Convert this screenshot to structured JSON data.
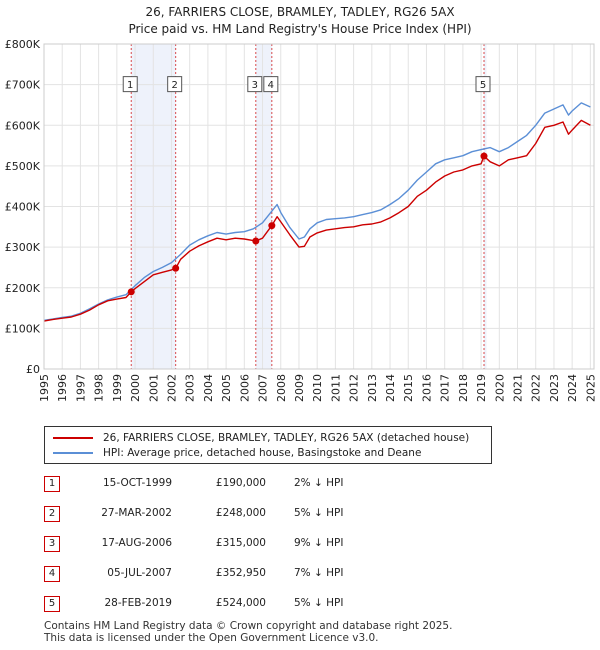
{
  "chart_data": {
    "type": "line",
    "title": "26, FARRIERS CLOSE, BRAMLEY, TADLEY, RG26 5AX",
    "subtitle": "Price paid vs. HM Land Registry's House Price Index (HPI)",
    "xlim": [
      1995,
      2025.2
    ],
    "ylim": [
      0,
      800000
    ],
    "y_ticks": [
      0,
      100000,
      200000,
      300000,
      400000,
      500000,
      600000,
      700000,
      800000
    ],
    "y_tick_labels": [
      "£0",
      "£100K",
      "£200K",
      "£300K",
      "£400K",
      "£500K",
      "£600K",
      "£700K",
      "£800K"
    ],
    "x_ticks": [
      1995,
      1996,
      1997,
      1998,
      1999,
      2000,
      2001,
      2002,
      2003,
      2004,
      2005,
      2006,
      2007,
      2008,
      2009,
      2010,
      2011,
      2012,
      2013,
      2014,
      2015,
      2016,
      2017,
      2018,
      2019,
      2020,
      2021,
      2022,
      2023,
      2024,
      2025
    ],
    "x_tick_labels": [
      "1995",
      "1996",
      "1997",
      "1998",
      "1999",
      "2000",
      "2001",
      "2002",
      "2003",
      "2004",
      "2005",
      "2006",
      "2007",
      "2008",
      "2009",
      "2010",
      "2011",
      "2012",
      "2013",
      "2014",
      "2015",
      "2016",
      "2017",
      "2018",
      "2019",
      "2020",
      "2021",
      "2022",
      "2023",
      "2024",
      "2025"
    ],
    "grid": true,
    "legend_position": "below chart",
    "colors": {
      "property": "#cc0000",
      "hpi": "#5b8fd6",
      "shade": "#eef2fb",
      "vline": "#cc0000"
    },
    "series": [
      {
        "name": "26, FARRIERS CLOSE, BRAMLEY, TADLEY, RG26 5AX (detached house)",
        "x": [
          1995.0,
          1995.5,
          1996.0,
          1996.5,
          1997.0,
          1997.5,
          1998.0,
          1998.5,
          1999.0,
          1999.5,
          1999.79,
          2000.0,
          2000.5,
          2001.0,
          2001.5,
          2002.0,
          2002.23,
          2002.5,
          2003.0,
          2003.5,
          2004.0,
          2004.5,
          2005.0,
          2005.5,
          2006.0,
          2006.5,
          2006.63,
          2007.0,
          2007.51,
          2007.8,
          2008.0,
          2008.5,
          2009.0,
          2009.3,
          2009.6,
          2010.0,
          2010.5,
          2011.0,
          2011.5,
          2012.0,
          2012.5,
          2013.0,
          2013.5,
          2014.0,
          2014.5,
          2015.0,
          2015.5,
          2016.0,
          2016.5,
          2017.0,
          2017.5,
          2018.0,
          2018.5,
          2019.0,
          2019.16,
          2019.5,
          2020.0,
          2020.5,
          2021.0,
          2021.5,
          2022.0,
          2022.5,
          2023.0,
          2023.5,
          2023.8,
          2024.0,
          2024.5,
          2025.0
        ],
        "values": [
          118000,
          122000,
          125000,
          128000,
          135000,
          145000,
          158000,
          168000,
          172000,
          176000,
          190000,
          198000,
          215000,
          232000,
          238000,
          244000,
          248000,
          270000,
          290000,
          303000,
          313000,
          322000,
          318000,
          322000,
          320000,
          316000,
          315000,
          322000,
          352950,
          375000,
          362000,
          330000,
          300000,
          302000,
          325000,
          335000,
          342000,
          345000,
          348000,
          350000,
          355000,
          357000,
          362000,
          372000,
          385000,
          400000,
          425000,
          440000,
          460000,
          475000,
          485000,
          490000,
          500000,
          505000,
          524000,
          510000,
          500000,
          515000,
          520000,
          525000,
          555000,
          595000,
          600000,
          608000,
          578000,
          588000,
          612000,
          600000
        ]
      },
      {
        "name": "HPI: Average price, detached house, Basingstoke and Deane",
        "x": [
          1995.0,
          1995.5,
          1996.0,
          1996.5,
          1997.0,
          1997.5,
          1998.0,
          1998.5,
          1999.0,
          1999.5,
          2000.0,
          2000.5,
          2001.0,
          2001.5,
          2002.0,
          2002.5,
          2003.0,
          2003.5,
          2004.0,
          2004.5,
          2005.0,
          2005.5,
          2006.0,
          2006.5,
          2007.0,
          2007.5,
          2007.8,
          2008.0,
          2008.5,
          2009.0,
          2009.3,
          2009.6,
          2010.0,
          2010.5,
          2011.0,
          2011.5,
          2012.0,
          2012.5,
          2013.0,
          2013.5,
          2014.0,
          2014.5,
          2015.0,
          2015.5,
          2016.0,
          2016.5,
          2017.0,
          2017.5,
          2018.0,
          2018.5,
          2019.0,
          2019.5,
          2020.0,
          2020.5,
          2021.0,
          2021.5,
          2022.0,
          2022.5,
          2023.0,
          2023.5,
          2023.8,
          2024.0,
          2024.5,
          2025.0
        ],
        "values": [
          120000,
          123000,
          127000,
          130000,
          137000,
          148000,
          160000,
          170000,
          177000,
          183000,
          205000,
          225000,
          240000,
          250000,
          262000,
          282000,
          305000,
          318000,
          328000,
          336000,
          332000,
          336000,
          338000,
          345000,
          360000,
          388000,
          405000,
          385000,
          348000,
          320000,
          325000,
          345000,
          360000,
          368000,
          370000,
          372000,
          375000,
          380000,
          385000,
          392000,
          405000,
          420000,
          440000,
          465000,
          485000,
          505000,
          515000,
          520000,
          525000,
          535000,
          540000,
          545000,
          535000,
          545000,
          560000,
          575000,
          600000,
          630000,
          640000,
          650000,
          625000,
          635000,
          655000,
          645000
        ]
      }
    ],
    "highlight_spans": [
      [
        1999.79,
        2002.23
      ],
      [
        2006.63,
        2007.51
      ],
      [
        2019.16,
        2019.3
      ]
    ],
    "sales": [
      {
        "label": "1",
        "x": 1999.79,
        "value": 190000
      },
      {
        "label": "2",
        "x": 2002.23,
        "value": 248000
      },
      {
        "label": "3",
        "x": 2006.63,
        "value": 315000
      },
      {
        "label": "4",
        "x": 2007.51,
        "value": 352950
      },
      {
        "label": "5",
        "x": 2019.16,
        "value": 524000
      }
    ]
  },
  "legend": {
    "property_label": "26, FARRIERS CLOSE, BRAMLEY, TADLEY, RG26 5AX (detached house)",
    "hpi_label": "HPI: Average price, detached house, Basingstoke and Deane"
  },
  "sales_table": [
    {
      "num": "1",
      "date": "15-OCT-1999",
      "price": "£190,000",
      "pct": "2% ↓ HPI"
    },
    {
      "num": "2",
      "date": "27-MAR-2002",
      "price": "£248,000",
      "pct": "5% ↓ HPI"
    },
    {
      "num": "3",
      "date": "17-AUG-2006",
      "price": "£315,000",
      "pct": "9% ↓ HPI"
    },
    {
      "num": "4",
      "date": "05-JUL-2007",
      "price": "£352,950",
      "pct": "7% ↓ HPI"
    },
    {
      "num": "5",
      "date": "28-FEB-2019",
      "price": "£524,000",
      "pct": "5% ↓ HPI"
    }
  ],
  "footer": {
    "line1": "Contains HM Land Registry data © Crown copyright and database right 2025.",
    "line2": "This data is licensed under the Open Government Licence v3.0."
  }
}
